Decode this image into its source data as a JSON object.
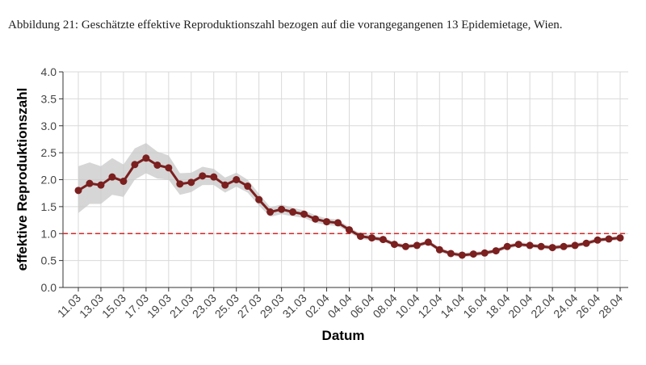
{
  "chart_data": {
    "type": "line",
    "title": "Abbildung 21: Geschätzte effektive Reproduktionszahl bezogen auf die vorangegangenen 13 Epidemietage, Wien.",
    "xlabel": "Datum",
    "ylabel": "effektive Reproduktionszahl",
    "categories": [
      "11.03",
      null,
      "13.03",
      null,
      "15.03",
      null,
      "17.03",
      null,
      "19.03",
      null,
      "21.03",
      null,
      "23.03",
      null,
      "25.03",
      null,
      "27.03",
      null,
      "29.03",
      null,
      "31.03",
      null,
      "02.04",
      null,
      "04.04",
      null,
      "06.04",
      null,
      "08.04",
      null,
      "10.04",
      null,
      "12.04",
      null,
      "14.04",
      null,
      "16.04",
      null,
      "18.04",
      null,
      "20.04",
      null,
      "22.04",
      null,
      "24.04",
      null,
      "26.04",
      null,
      "28.04"
    ],
    "series": [
      {
        "color": "#7b1f1f",
        "values": [
          1.8,
          1.93,
          1.9,
          2.05,
          1.97,
          2.28,
          2.4,
          2.27,
          2.22,
          1.92,
          1.95,
          2.07,
          2.05,
          1.9,
          2.0,
          1.88,
          1.63,
          1.4,
          1.45,
          1.4,
          1.36,
          1.27,
          1.22,
          1.2,
          1.07,
          0.95,
          0.92,
          0.89,
          0.8,
          0.76,
          0.78,
          0.84,
          0.7,
          0.63,
          0.6,
          0.62,
          0.64,
          0.68,
          0.76,
          0.8,
          0.78,
          0.76,
          0.74,
          0.76,
          0.78,
          0.82,
          0.88,
          0.9,
          0.92
        ]
      }
    ],
    "band": {
      "color": "#c8c8c8",
      "lower": [
        1.38,
        1.55,
        1.55,
        1.72,
        1.68,
        2.0,
        2.12,
        2.02,
        2.0,
        1.72,
        1.77,
        1.9,
        1.9,
        1.76,
        1.87,
        1.76,
        1.52,
        1.31,
        1.36,
        1.32,
        1.29,
        1.2,
        1.16,
        1.14,
        1.02,
        0.9,
        0.87,
        0.85,
        0.76,
        0.72,
        0.74,
        0.8,
        0.66,
        0.59,
        0.56,
        0.58,
        0.6,
        0.64,
        0.72,
        0.76,
        0.74,
        0.72,
        0.7,
        0.72,
        0.74,
        0.78,
        0.84,
        0.86,
        0.88
      ],
      "upper": [
        2.25,
        2.32,
        2.25,
        2.4,
        2.28,
        2.58,
        2.68,
        2.52,
        2.45,
        2.12,
        2.13,
        2.24,
        2.2,
        2.04,
        2.13,
        2.0,
        1.74,
        1.49,
        1.54,
        1.48,
        1.43,
        1.34,
        1.28,
        1.26,
        1.12,
        1.0,
        0.97,
        0.93,
        0.84,
        0.8,
        0.82,
        0.88,
        0.74,
        0.67,
        0.64,
        0.66,
        0.68,
        0.72,
        0.8,
        0.84,
        0.82,
        0.8,
        0.78,
        0.8,
        0.82,
        0.86,
        0.92,
        0.94,
        0.96
      ]
    },
    "hline": {
      "value": 1,
      "color": "#d62728"
    },
    "ylim": [
      0,
      4
    ],
    "yticks": [
      {
        "value": 0,
        "label": "0.0"
      },
      0.5,
      {
        "value": 1,
        "label": "1.0"
      },
      1.5,
      {
        "value": 2,
        "label": "2.0"
      },
      2.5,
      {
        "value": 3,
        "label": "3.0"
      },
      3.5,
      {
        "value": 4,
        "label": "4.0"
      }
    ],
    "grid": true
  }
}
